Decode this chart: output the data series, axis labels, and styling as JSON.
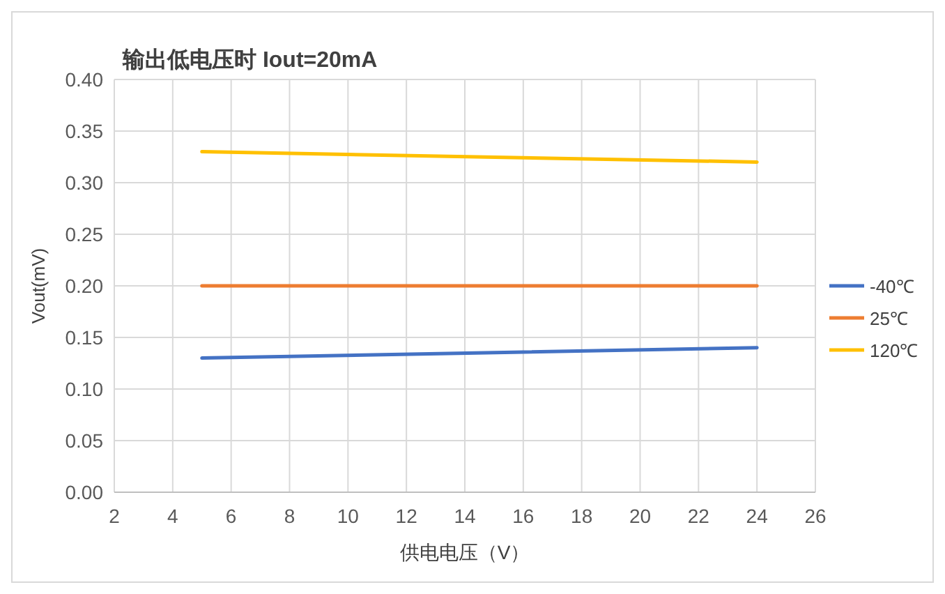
{
  "chart_data": {
    "type": "line",
    "title": "输出低电压时 Iout=20mA",
    "xlabel": "供电电压（V）",
    "ylabel": "Vout(mV)",
    "x": [
      5,
      24
    ],
    "series": [
      {
        "name": "-40℃",
        "color": "#4472c4",
        "values": [
          0.13,
          0.14
        ]
      },
      {
        "name": "25℃",
        "color": "#ed7d31",
        "values": [
          0.2,
          0.2
        ]
      },
      {
        "name": "120℃",
        "color": "#ffc000",
        "values": [
          0.33,
          0.32
        ]
      }
    ],
    "xlim": [
      2,
      26
    ],
    "xticks": [
      2,
      4,
      6,
      8,
      10,
      12,
      14,
      16,
      18,
      20,
      22,
      24,
      26
    ],
    "ylim": [
      0,
      0.4
    ],
    "yticks": [
      {
        "value": 0,
        "label": "0.00"
      },
      {
        "value": 0.05,
        "label": "0.05"
      },
      {
        "value": 0.1,
        "label": "0.10"
      },
      {
        "value": 0.15,
        "label": "0.15"
      },
      {
        "value": 0.2,
        "label": "0.20"
      },
      {
        "value": 0.25,
        "label": "0.25"
      },
      {
        "value": 0.3,
        "label": "0.30"
      },
      {
        "value": 0.35,
        "label": "0.35"
      },
      {
        "value": 0.4,
        "label": "0.40"
      }
    ],
    "grid": true,
    "legend": "right"
  }
}
